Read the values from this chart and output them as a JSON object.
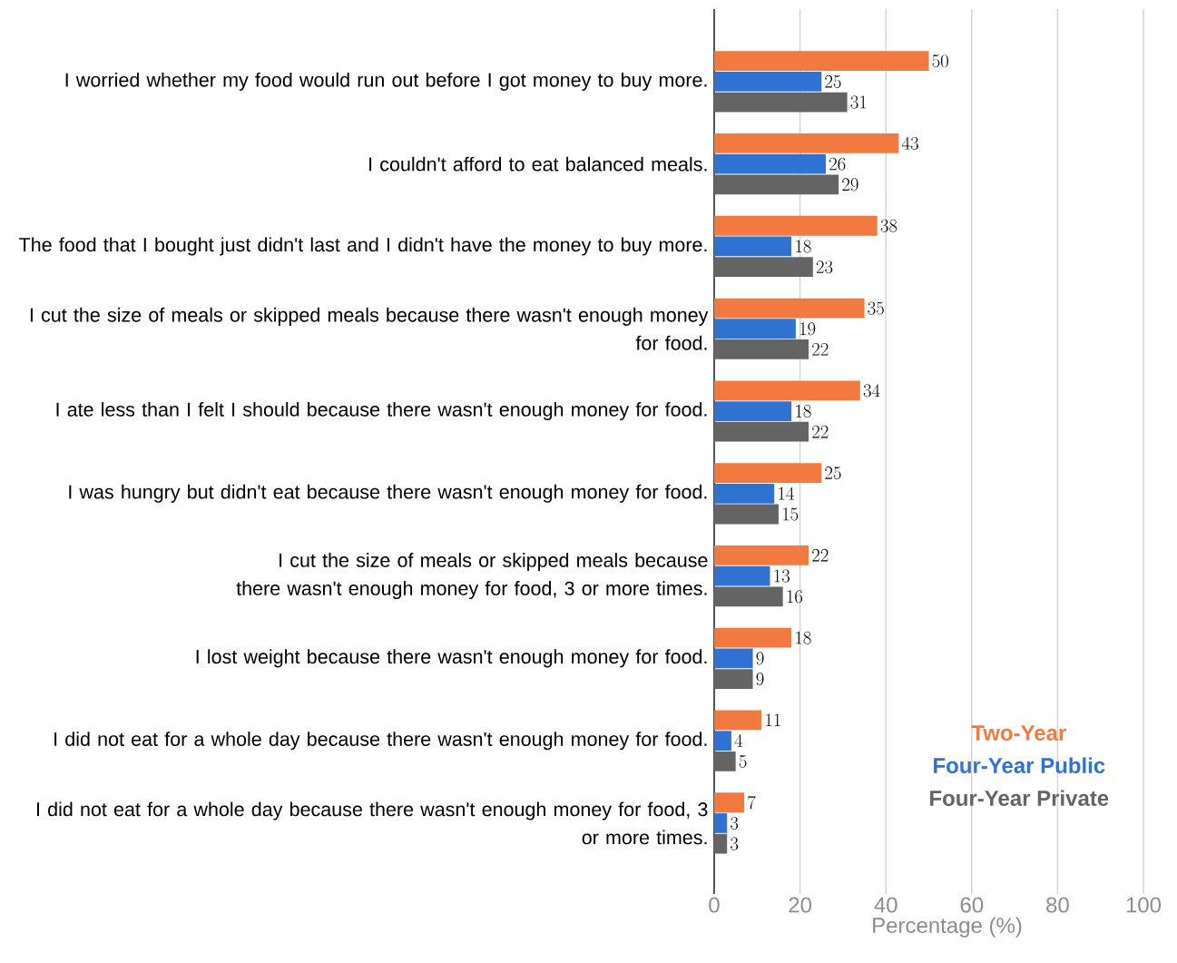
{
  "chart_data": {
    "type": "bar",
    "orientation": "horizontal",
    "categories": [
      "I worried whether my food would run out before I got money to buy more.",
      "I couldn't afford to eat balanced meals.",
      "The food that I bought just didn't last and I didn't have the money to buy more.",
      "I cut the size of meals or skipped meals because there wasn't enough money for food.",
      "I ate less than I felt I should because there wasn't enough money for food.",
      "I was hungry but didn't eat because there wasn't enough money for food.",
      "I cut the size of meals or skipped meals because there wasn't enough money for food, 3 or more times.",
      "I lost weight because there wasn't enough money for food.",
      "I did not eat for a whole day because there wasn't enough money for food.",
      "I did not eat for a whole day because there wasn't enough money for food, 3 or more times."
    ],
    "series": [
      {
        "name": "Two-Year",
        "color": "#f27a40",
        "values": [
          50,
          43,
          38,
          35,
          34,
          25,
          22,
          18,
          11,
          7
        ]
      },
      {
        "name": "Four-Year Public",
        "color": "#2f72d2",
        "values": [
          25,
          26,
          18,
          19,
          18,
          14,
          13,
          9,
          4,
          3
        ]
      },
      {
        "name": "Four-Year Private",
        "color": "#646464",
        "values": [
          31,
          29,
          23,
          22,
          22,
          15,
          16,
          9,
          5,
          3
        ]
      }
    ],
    "xlabel": "Percentage (%)",
    "xlim": [
      0,
      100
    ],
    "xticks": [
      0,
      20,
      40,
      60,
      80,
      100
    ],
    "grid": "x",
    "legend": "bottom right",
    "data_labels": true
  }
}
